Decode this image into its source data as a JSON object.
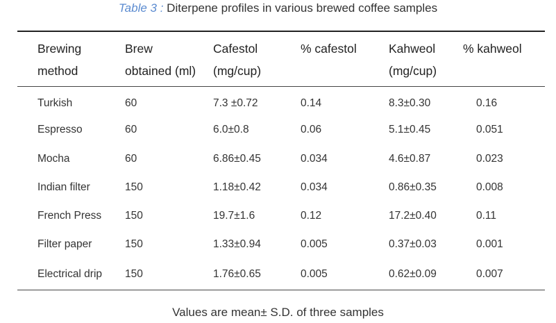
{
  "caption": {
    "label": "Table 3 :",
    "text": " Diterpene profiles in various brewed coffee samples"
  },
  "table": {
    "headers": [
      "Brewing\nmethod",
      "Brew\nobtained (ml)",
      "Cafestol\n(mg/cup)",
      "% cafestol",
      "Kahweol\n(mg/cup)",
      "% kahweol"
    ],
    "rows": [
      [
        "Turkish",
        "60",
        "7.3 ±0.72",
        "0.14",
        "8.3±0.30",
        "0.16"
      ],
      [
        "Espresso",
        "60",
        "6.0±0.8",
        "0.06",
        "5.1±0.45",
        "0.051"
      ],
      [
        "Mocha",
        "60",
        "6.86±0.45",
        "0.034",
        "4.6±0.87",
        "0.023"
      ],
      [
        "Indian filter",
        "150",
        "1.18±0.42",
        "0.034",
        "0.86±0.35",
        "0.008"
      ],
      [
        "French Press",
        "150",
        "19.7±1.6",
        "0.12",
        "17.2±0.40",
        "0.11"
      ],
      [
        "Filter paper",
        "150",
        "1.33±0.94",
        "0.005",
        "0.37±0.03",
        "0.001"
      ],
      [
        "Electrical drip",
        "150",
        "1.76±0.65",
        "0.005",
        "0.62±0.09",
        "0.007"
      ]
    ]
  },
  "footnote": "Values are mean± S.D. of three samples",
  "colors": {
    "caption_label": "#5b8bd0",
    "text": "#333333",
    "rule": "#222222"
  }
}
